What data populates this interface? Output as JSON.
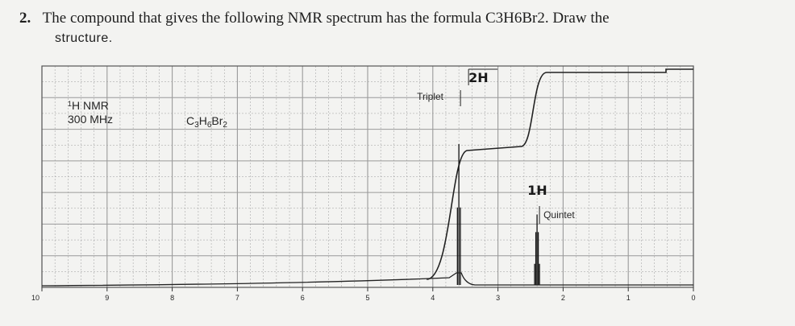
{
  "question": {
    "number": "2.",
    "text": "The compound that gives the following NMR spectrum has the formula C3H6Br2. Draw the",
    "text_continued": "structure."
  },
  "spectrum_labels": {
    "nucleus": "1H NMR",
    "frequency": "300 MHz",
    "formula": "C3H6Br2"
  },
  "colors": {
    "ink": "#1e1e1e",
    "grid": "#8a8a8a",
    "paper": "#f3f3f1"
  },
  "chart_data": {
    "type": "line",
    "xaxis": {
      "ticks": [
        10,
        9,
        8,
        7,
        6,
        5,
        4,
        3,
        2,
        1,
        0
      ],
      "range": [
        10,
        0
      ],
      "reversed": true,
      "unit": "ppm"
    },
    "grid": true,
    "peaks": [
      {
        "shift_ppm": 3.6,
        "multiplicity": "Triplet",
        "integration": "2H",
        "relative_height": 1.0
      },
      {
        "shift_ppm": 2.4,
        "multiplicity": "Quintet",
        "integration": "1H",
        "relative_height": 0.5
      }
    ],
    "integration_curve": {
      "steps": [
        {
          "at_ppm": 3.6,
          "integration": "2H"
        },
        {
          "at_ppm": 2.4,
          "integration": "1H"
        }
      ]
    },
    "annotations": [
      "Triplet",
      "2H",
      "1H",
      "Quintet"
    ]
  }
}
